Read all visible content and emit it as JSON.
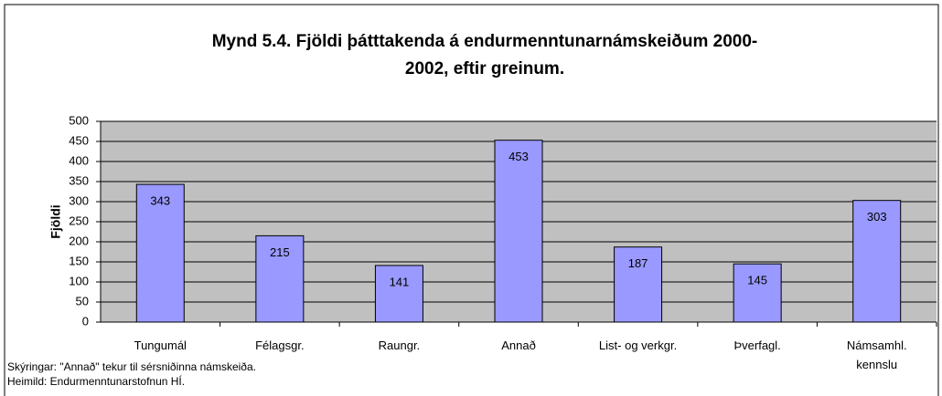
{
  "chart_data": {
    "type": "bar",
    "title": "Mynd 5.4. Fjöldi þátttakenda á endurmenntunarnámskeiðum 2000-",
    "title_line2": "2002, eftir greinum.",
    "ylabel": "Fjöldi",
    "categories": [
      "Tungumál",
      "Félagsgr.",
      "Raungr.",
      "Annað",
      "List- og verkgr.",
      "Þverfagl.",
      "Námsamhl.\nkennslu"
    ],
    "values": [
      343,
      215,
      141,
      453,
      187,
      145,
      303
    ],
    "color": "#9999ff",
    "ylim": [
      0,
      500
    ],
    "yticks": [
      0,
      50,
      100,
      150,
      200,
      250,
      300,
      350,
      400,
      450,
      500
    ],
    "grid": true,
    "notes": [
      "Skýringar: \"Annað\" tekur til sérsniðinna námskeiða.",
      "Heimild: Endurmenntunarstofnun HÍ."
    ]
  }
}
